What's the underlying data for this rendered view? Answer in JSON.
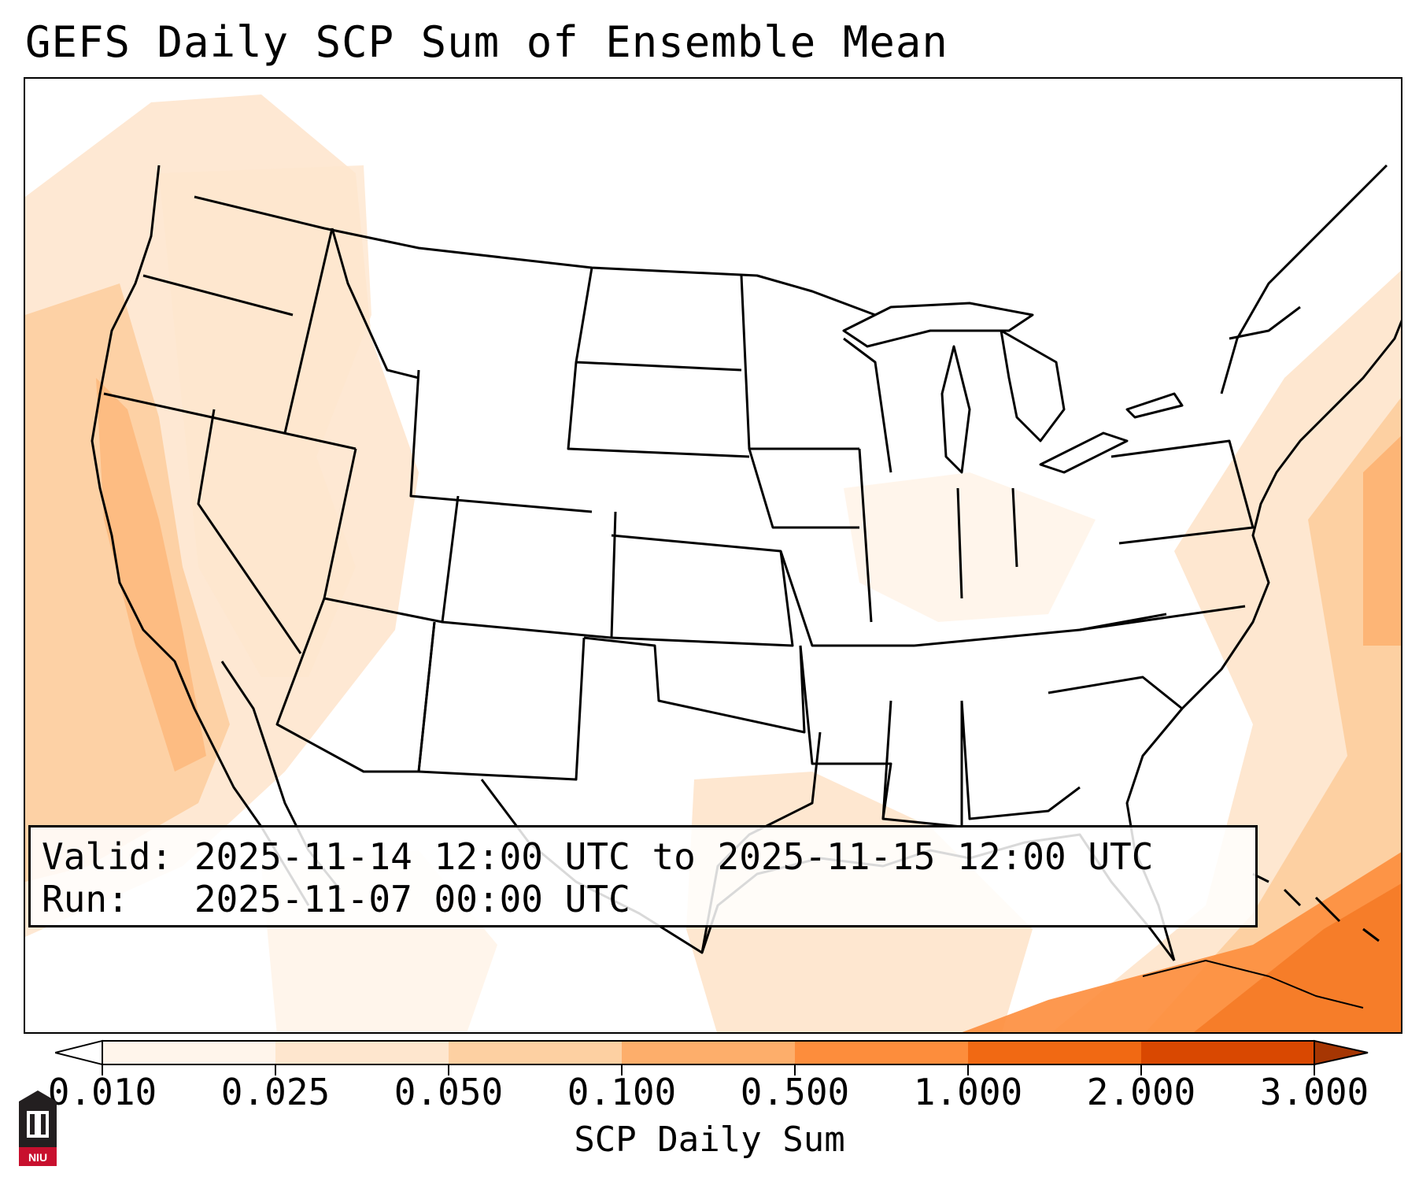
{
  "title": "GEFS Daily SCP Sum of Ensemble Mean",
  "info": {
    "valid_label": "Valid:",
    "valid_value": "2025-11-14 12:00 UTC to 2025-11-15 12:00 UTC",
    "run_label": "Run:",
    "run_value": "2025-11-07 00:00 UTC"
  },
  "colorbar": {
    "label": "SCP Daily Sum",
    "ticks": [
      "0.010",
      "0.025",
      "0.050",
      "0.100",
      "0.500",
      "1.000",
      "2.000",
      "3.000"
    ],
    "colors": [
      "#fff5eb",
      "#fee6ce",
      "#fdd0a2",
      "#fdae6b",
      "#fd8d3c",
      "#f16913",
      "#d94801"
    ],
    "extend_min_color": "#ffffff",
    "extend_max_color": "#a63603"
  },
  "logo": {
    "text": "NIU",
    "color": "#c8102e"
  }
}
